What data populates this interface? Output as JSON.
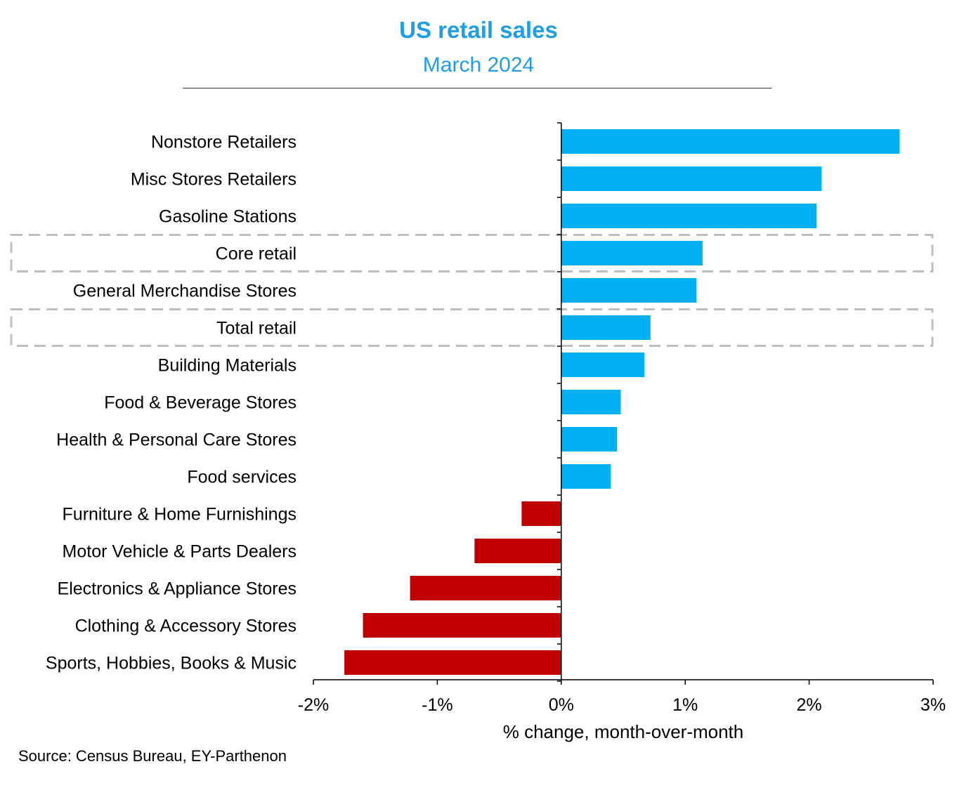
{
  "header": {
    "title": "US retail sales",
    "subtitle": "March 2024"
  },
  "footer": {
    "source": "Source: Census Bureau, EY-Parthenon"
  },
  "colors": {
    "positive": "#00b0f0",
    "negative": "#c00000",
    "title": "#1f9ee6",
    "highlight_box": "#bfbfbf"
  },
  "chart_data": {
    "type": "bar",
    "orientation": "horizontal",
    "categories": [
      "Nonstore Retailers",
      "Misc Stores Retailers",
      "Gasoline Stations",
      "Core retail",
      "General Merchandise Stores",
      "Total retail",
      "Building Materials",
      "Food & Beverage Stores",
      "Health & Personal Care Stores",
      "Food services",
      "Furniture & Home Furnishings",
      "Motor Vehicle & Parts Dealers",
      "Electronics & Appliance Stores",
      "Clothing & Accessory Stores",
      "Sports, Hobbies, Books & Music"
    ],
    "values": [
      2.73,
      2.1,
      2.06,
      1.14,
      1.09,
      0.72,
      0.67,
      0.48,
      0.45,
      0.4,
      -0.32,
      -0.7,
      -1.22,
      -1.6,
      -1.75
    ],
    "highlighted": [
      "Core retail",
      "Total retail"
    ],
    "xlabel": "% change, month-over-month",
    "xlim": [
      -2,
      3
    ],
    "xticks": [
      -2,
      -1,
      0,
      1,
      2,
      3
    ],
    "xtick_labels": [
      "-2%",
      "-1%",
      "0%",
      "1%",
      "2%",
      "3%"
    ],
    "grid": false,
    "legend": "none"
  }
}
